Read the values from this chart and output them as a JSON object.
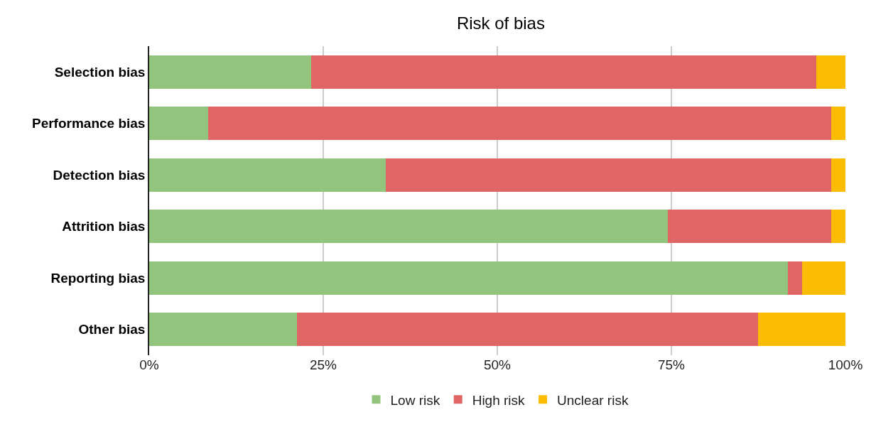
{
  "chart_data": {
    "type": "bar",
    "orientation": "horizontal",
    "stacked": true,
    "title": "Risk of bias",
    "categories": [
      "Selection bias",
      "Performance bias",
      "Detection bias",
      "Attrition bias",
      "Reporting bias",
      "Other bias"
    ],
    "series": [
      {
        "name": "Low risk",
        "color": "#93c47d",
        "values": [
          23.3,
          8.5,
          34.0,
          74.5,
          91.7,
          21.2
        ]
      },
      {
        "name": "High risk",
        "color": "#e06666",
        "values": [
          72.5,
          89.5,
          64.0,
          23.5,
          2.1,
          66.2
        ]
      },
      {
        "name": "Unclear risk",
        "color": "#fbbc04",
        "values": [
          4.2,
          2.0,
          2.0,
          2.0,
          6.2,
          12.6
        ]
      }
    ],
    "xlim": [
      0,
      100
    ],
    "xticks": [
      {
        "value": 0,
        "label": "0%"
      },
      {
        "value": 25,
        "label": "25%"
      },
      {
        "value": 50,
        "label": "50%"
      },
      {
        "value": 75,
        "label": "75%"
      },
      {
        "value": 100,
        "label": "100%"
      }
    ],
    "grid": "x",
    "legend": "bottom"
  }
}
